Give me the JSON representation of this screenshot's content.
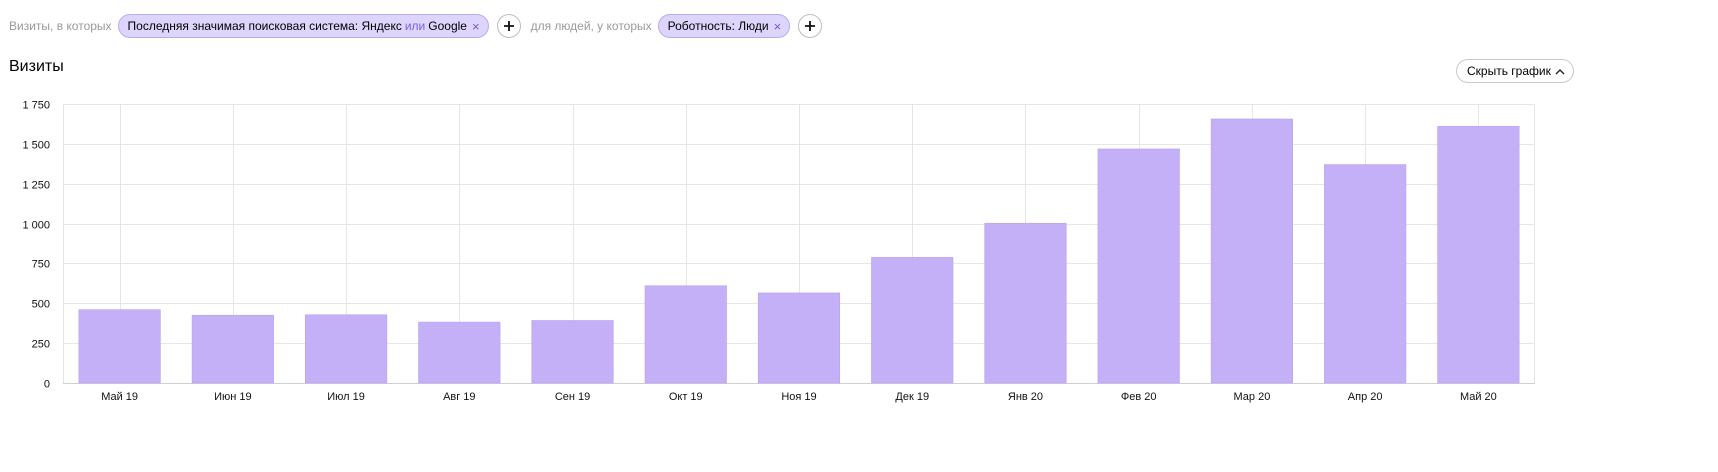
{
  "filters": {
    "label_visits": "Визиты, в которых",
    "chip1": {
      "text_a": "Последняя значимая поисковая система: Яндекс",
      "or": "или",
      "text_b": "Google",
      "close": "×"
    },
    "label_people": "для людей, у которых",
    "chip2": {
      "text": "Роботность: Люди",
      "close": "×"
    }
  },
  "header": {
    "title": "Визиты",
    "hide_button": "Скрыть график"
  },
  "colors": {
    "bar": "#c4b0f7",
    "grid": "#e6e6e6",
    "chip_bg": "#ddd5fb"
  },
  "chart_data": {
    "type": "bar",
    "title": "Визиты",
    "categories": [
      "Май 19",
      "Июн 19",
      "Июл 19",
      "Авг 19",
      "Сен 19",
      "Окт 19",
      "Ноя 19",
      "Дек 19",
      "Янв 20",
      "Фев 20",
      "Мар 20",
      "Апр 20",
      "Май 20"
    ],
    "values": [
      460,
      425,
      428,
      382,
      392,
      610,
      565,
      788,
      1002,
      1468,
      1656,
      1370,
      1610
    ],
    "yticks": [
      0,
      250,
      500,
      750,
      1000,
      1250,
      1500,
      1750
    ],
    "ytick_labels": [
      "0",
      "250",
      "500",
      "750",
      "1 000",
      "1 250",
      "1 500",
      "1 750"
    ],
    "ylim": [
      0,
      1750
    ],
    "xlabel": "",
    "ylabel": "",
    "grid": true,
    "legend": "none"
  }
}
